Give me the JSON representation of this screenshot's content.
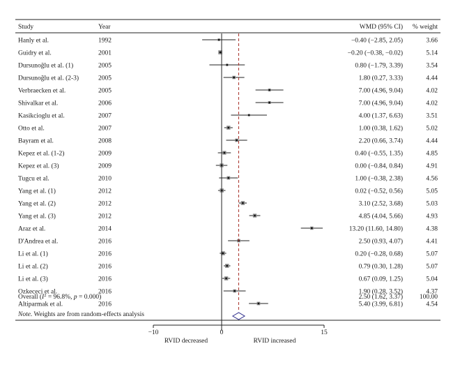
{
  "chart_data": {
    "type": "forest",
    "headers": {
      "study": "Study",
      "year": "Year",
      "effect": "WMD (95% CI)",
      "weight": "% weight"
    },
    "studies": [
      {
        "name": "Hanly et al.",
        "year": "1992",
        "wmd": -0.4,
        "lo": -2.85,
        "hi": 2.05,
        "ci_text": "−0.40 (−2.85, 2.05)",
        "weight": "3.66"
      },
      {
        "name": "Guidry et al.",
        "year": "2001",
        "wmd": -0.2,
        "lo": -0.38,
        "hi": -0.02,
        "ci_text": "−0.20 (−0.38, −0.02)",
        "weight": "5.14"
      },
      {
        "name": "Dursunoğlu et al. (1)",
        "year": "2005",
        "wmd": 0.8,
        "lo": -1.79,
        "hi": 3.39,
        "ci_text": "0.80 (−1.79, 3.39)",
        "weight": "3.54"
      },
      {
        "name": "Dursunoğlu et al. (2-3)",
        "year": "2005",
        "wmd": 1.8,
        "lo": 0.27,
        "hi": 3.33,
        "ci_text": "1.80 (0.27, 3.33)",
        "weight": "4.44"
      },
      {
        "name": "Verbraecken et al.",
        "year": "2005",
        "wmd": 7.0,
        "lo": 4.96,
        "hi": 9.04,
        "ci_text": "7.00 (4.96, 9.04)",
        "weight": "4.02"
      },
      {
        "name": "Shivalkar et al.",
        "year": "2006",
        "wmd": 7.0,
        "lo": 4.96,
        "hi": 9.04,
        "ci_text": "7.00 (4.96, 9.04)",
        "weight": "4.02"
      },
      {
        "name": "Kasikcioglu et al.",
        "year": "2007",
        "wmd": 4.0,
        "lo": 1.37,
        "hi": 6.63,
        "ci_text": "4.00 (1.37, 6.63)",
        "weight": "3.51"
      },
      {
        "name": "Otto et al.",
        "year": "2007",
        "wmd": 1.0,
        "lo": 0.38,
        "hi": 1.62,
        "ci_text": "1.00 (0.38, 1.62)",
        "weight": "5.02"
      },
      {
        "name": "Bayram et al.",
        "year": "2008",
        "wmd": 2.2,
        "lo": 0.66,
        "hi": 3.74,
        "ci_text": "2.20 (0.66, 3.74)",
        "weight": "4.44"
      },
      {
        "name": "Kepez et al. (1-2)",
        "year": "2009",
        "wmd": 0.4,
        "lo": -0.55,
        "hi": 1.35,
        "ci_text": "0.40 (−0.55, 1.35)",
        "weight": "4.85"
      },
      {
        "name": "Kepez et al. (3)",
        "year": "2009",
        "wmd": 0.0,
        "lo": -0.84,
        "hi": 0.84,
        "ci_text": "0.00 (−0.84, 0.84)",
        "weight": "4.91"
      },
      {
        "name": "Tugcu et al.",
        "year": "2010",
        "wmd": 1.0,
        "lo": -0.38,
        "hi": 2.38,
        "ci_text": "1.00 (−0.38, 2.38)",
        "weight": "4.56"
      },
      {
        "name": "Yang et al. (1)",
        "year": "2012",
        "wmd": 0.02,
        "lo": -0.52,
        "hi": 0.56,
        "ci_text": "0.02 (−0.52, 0.56)",
        "weight": "5.05"
      },
      {
        "name": "Yang et al. (2)",
        "year": "2012",
        "wmd": 3.1,
        "lo": 2.52,
        "hi": 3.68,
        "ci_text": "3.10 (2.52, 3.68)",
        "weight": "5.03"
      },
      {
        "name": "Yang et al. (3)",
        "year": "2012",
        "wmd": 4.85,
        "lo": 4.04,
        "hi": 5.66,
        "ci_text": "4.85 (4.04, 5.66)",
        "weight": "4.93"
      },
      {
        "name": "Araz et al.",
        "year": "2014",
        "wmd": 13.2,
        "lo": 11.6,
        "hi": 14.8,
        "ci_text": "13.20 (11.60, 14.80)",
        "weight": "4.38"
      },
      {
        "name": "D'Andrea et al.",
        "year": "2016",
        "wmd": 2.5,
        "lo": 0.93,
        "hi": 4.07,
        "ci_text": "2.50 (0.93, 4.07)",
        "weight": "4.41"
      },
      {
        "name": "Li et al. (1)",
        "year": "2016",
        "wmd": 0.2,
        "lo": -0.28,
        "hi": 0.68,
        "ci_text": "0.20 (−0.28, 0.68)",
        "weight": "5.07"
      },
      {
        "name": "Li et al. (2)",
        "year": "2016",
        "wmd": 0.79,
        "lo": 0.3,
        "hi": 1.28,
        "ci_text": "0.79 (0.30, 1.28)",
        "weight": "5.07"
      },
      {
        "name": "Li et al. (3)",
        "year": "2016",
        "wmd": 0.67,
        "lo": 0.09,
        "hi": 1.25,
        "ci_text": "0.67 (0.09, 1.25)",
        "weight": "5.04"
      },
      {
        "name": "Ozkececi et al.",
        "year": "2016",
        "wmd": 1.9,
        "lo": 0.28,
        "hi": 3.52,
        "ci_text": "1.90 (0.28, 3.52)",
        "weight": "4.37"
      },
      {
        "name": "Altiparmak et al.",
        "year": "2016",
        "wmd": 5.4,
        "lo": 3.99,
        "hi": 6.81,
        "ci_text": "5.40 (3.99, 6.81)",
        "weight": "4.54"
      }
    ],
    "overall": {
      "label_prefix": "Overall (",
      "label_i2": "I",
      "label_sup": "2",
      "label_mid": " = 96.8%, ",
      "label_p": "p",
      "label_end": " = 0.000)",
      "wmd": 2.5,
      "lo": 1.62,
      "hi": 3.37,
      "ci_text": "2.50 (1.62, 3.37)",
      "weight": "100.00"
    },
    "note_label": "Note.",
    "note_text": " Weights are from random-effects analysis",
    "xlim": [
      -10,
      15
    ],
    "x_ticks": [
      {
        "value": -10,
        "label": "−10"
      },
      {
        "value": 0,
        "label": "0"
      },
      {
        "value": 15,
        "label": "15"
      }
    ],
    "x_left_label": "RVID decreased",
    "x_right_label": "RVID increased",
    "null_line": 0,
    "colors": {
      "ci_line": "#222222",
      "marker_box": "#8a8a8a",
      "ref_line": "#a8322a",
      "diamond": "#2a2a8a"
    }
  }
}
